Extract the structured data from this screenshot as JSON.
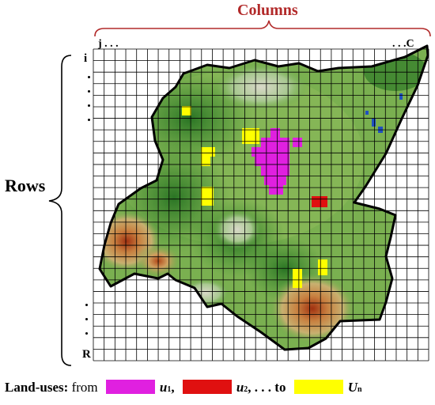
{
  "columns": {
    "title": "Columns",
    "start_label": "j . . .",
    "end_label": ". . .C"
  },
  "rows": {
    "title": "Rows",
    "start_label": "i",
    "end_label": "R"
  },
  "grid": {
    "columns": 31,
    "rows": 27
  },
  "legend": {
    "prefix": "Land-uses:",
    "from_word": "from",
    "items": [
      {
        "symbol": "u",
        "subscript": "1",
        "separator": ",",
        "color": "#e020e0"
      },
      {
        "symbol": "u",
        "subscript": "2",
        "separator": ", . . . to",
        "color": "#e01010"
      },
      {
        "symbol": "U",
        "subscript": "n",
        "separator": "",
        "color": "#ffff00"
      }
    ]
  },
  "colors": {
    "label_red": "#b22a2a",
    "terrain_low": "#5aa02c",
    "terrain_dark": "#2f7a26",
    "terrain_high": "#c8a060",
    "peak": "#a03010",
    "water": "#2050c0"
  }
}
